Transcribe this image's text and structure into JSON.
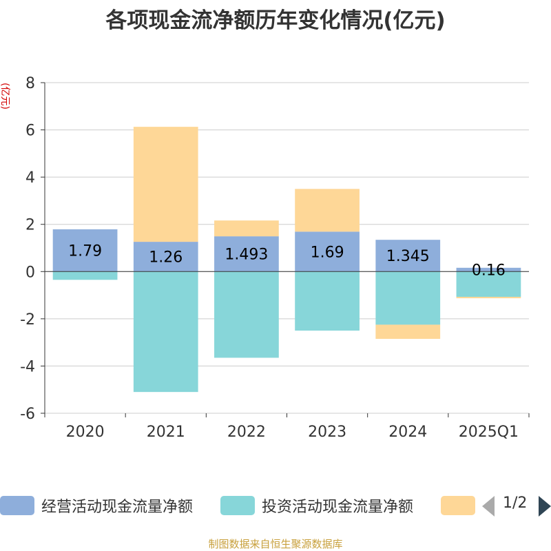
{
  "chart_data": {
    "type": "bar",
    "stacked": true,
    "title": "各项现金流净额历年变化情况(亿元)",
    "ylabel": "(亿元)",
    "ylim": [
      -6,
      8
    ],
    "yticks": [
      -6,
      -4,
      -2,
      0,
      2,
      4,
      6,
      8
    ],
    "categories": [
      "2020",
      "2021",
      "2022",
      "2023",
      "2024",
      "2025Q1"
    ],
    "series": [
      {
        "name": "经营活动现金流量净额",
        "color": "#8eaedb",
        "values": [
          1.79,
          1.26,
          1.493,
          1.69,
          1.345,
          0.16
        ],
        "labels": [
          "1.79",
          "1.26",
          "1.493",
          "1.69",
          "1.345",
          "0.16"
        ]
      },
      {
        "name": "投资活动现金流量净额",
        "color": "#87d6d9",
        "values": [
          -0.35,
          -5.1,
          -3.65,
          -2.5,
          -2.25,
          -1.07
        ]
      },
      {
        "name": "",
        "color": "#fed797",
        "values": [
          0,
          4.87,
          0.67,
          1.81,
          -0.6,
          -0.06
        ]
      }
    ]
  },
  "legend": {
    "items": [
      {
        "label": "经营活动现金流量净额",
        "color": "#8eaedb"
      },
      {
        "label": "投资活动现金流量净额",
        "color": "#87d6d9"
      },
      {
        "label": "",
        "color": "#fed797"
      }
    ],
    "page": "1/2"
  },
  "footer": {
    "source": "制图数据来自恒生聚源数据库"
  }
}
